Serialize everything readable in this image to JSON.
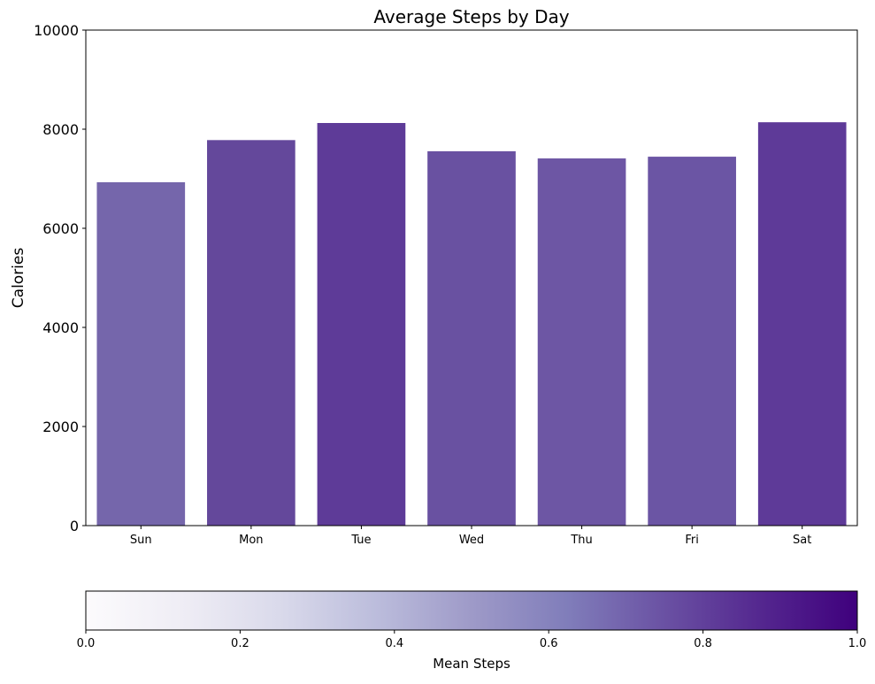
{
  "chart_data": {
    "type": "bar",
    "title": "Average Steps by Day",
    "xlabel": "",
    "ylabel": "Calories",
    "categories": [
      "Sun",
      "Mon",
      "Tue",
      "Wed",
      "Thu",
      "Fri",
      "Sat"
    ],
    "values": [
      6930,
      7780,
      8125,
      7555,
      7410,
      7445,
      8140
    ],
    "bar_colors": [
      "#7566ab",
      "#64489b",
      "#5e3b98",
      "#6951a1",
      "#6d56a4",
      "#6b55a4",
      "#5e3a98"
    ],
    "ylim": [
      0,
      10000
    ],
    "yticks": [
      "0",
      "2000",
      "4000",
      "6000",
      "8000",
      "10000"
    ],
    "grid": false,
    "colorbar": {
      "label": "Mean Steps",
      "range": [
        0.0,
        1.0
      ],
      "ticks": [
        "0.0",
        "0.2",
        "0.4",
        "0.6",
        "0.8",
        "1.0"
      ],
      "colormap": "Purples",
      "colors": [
        "#fcfbfd",
        "#efedf5",
        "#dadaeb",
        "#bcbddc",
        "#9e9ac8",
        "#807dba",
        "#6a51a3",
        "#54278f",
        "#3f007d"
      ]
    }
  }
}
